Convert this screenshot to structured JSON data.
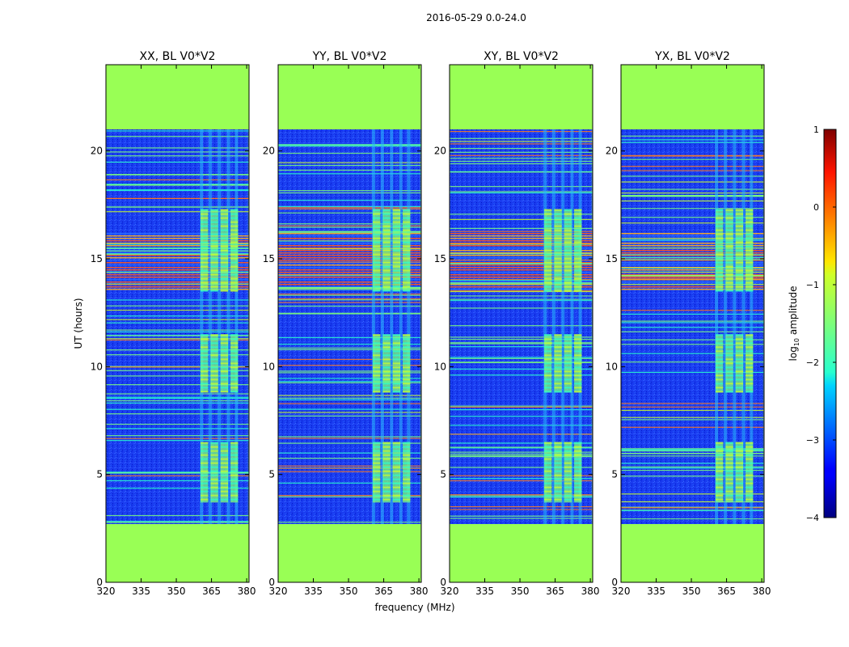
{
  "figure": {
    "suptitle": "2016-05-29 0.0-24.0"
  },
  "chart_data": {
    "type": "heatmap",
    "suptitle": "2016-05-29 0.0-24.0",
    "xlabel": "frequency (MHz)",
    "ylabel": "UT (hours)",
    "xlim": [
      320,
      381
    ],
    "ylim": [
      0,
      24
    ],
    "xticks": [
      "320",
      "335",
      "350",
      "365",
      "380"
    ],
    "yticks": [
      "0",
      "5",
      "10",
      "15",
      "20"
    ],
    "panels": [
      {
        "title": "XX, BL V0*V2",
        "show_ylabel": true,
        "show_xlabel": false
      },
      {
        "title": "YY, BL V0*V2",
        "show_ylabel": false,
        "show_xlabel": true
      },
      {
        "title": "XY, BL V0*V2",
        "show_ylabel": false,
        "show_xlabel": false
      },
      {
        "title": "YX, BL V0*V2",
        "show_ylabel": false,
        "show_xlabel": false
      }
    ],
    "data_span_hours": [
      2.7,
      21.0
    ],
    "masked_color": "#99ff55",
    "active_band_mhz": [
      360,
      377
    ],
    "strong_ut_ranges": [
      [
        3.7,
        6.5
      ],
      [
        8.8,
        11.5
      ],
      [
        13.5,
        17.3
      ]
    ],
    "flagged_ut_ranges": [
      [
        13.6,
        16.2
      ]
    ],
    "colorbar": {
      "label": "log10 amplitude",
      "label_main": "log",
      "label_sub": "10",
      "label_tail": " amplitude",
      "range": [
        -4,
        1
      ],
      "ticks": [
        "1",
        "0",
        "−1",
        "−2",
        "−3",
        "−4"
      ],
      "colormap": "jet"
    }
  }
}
